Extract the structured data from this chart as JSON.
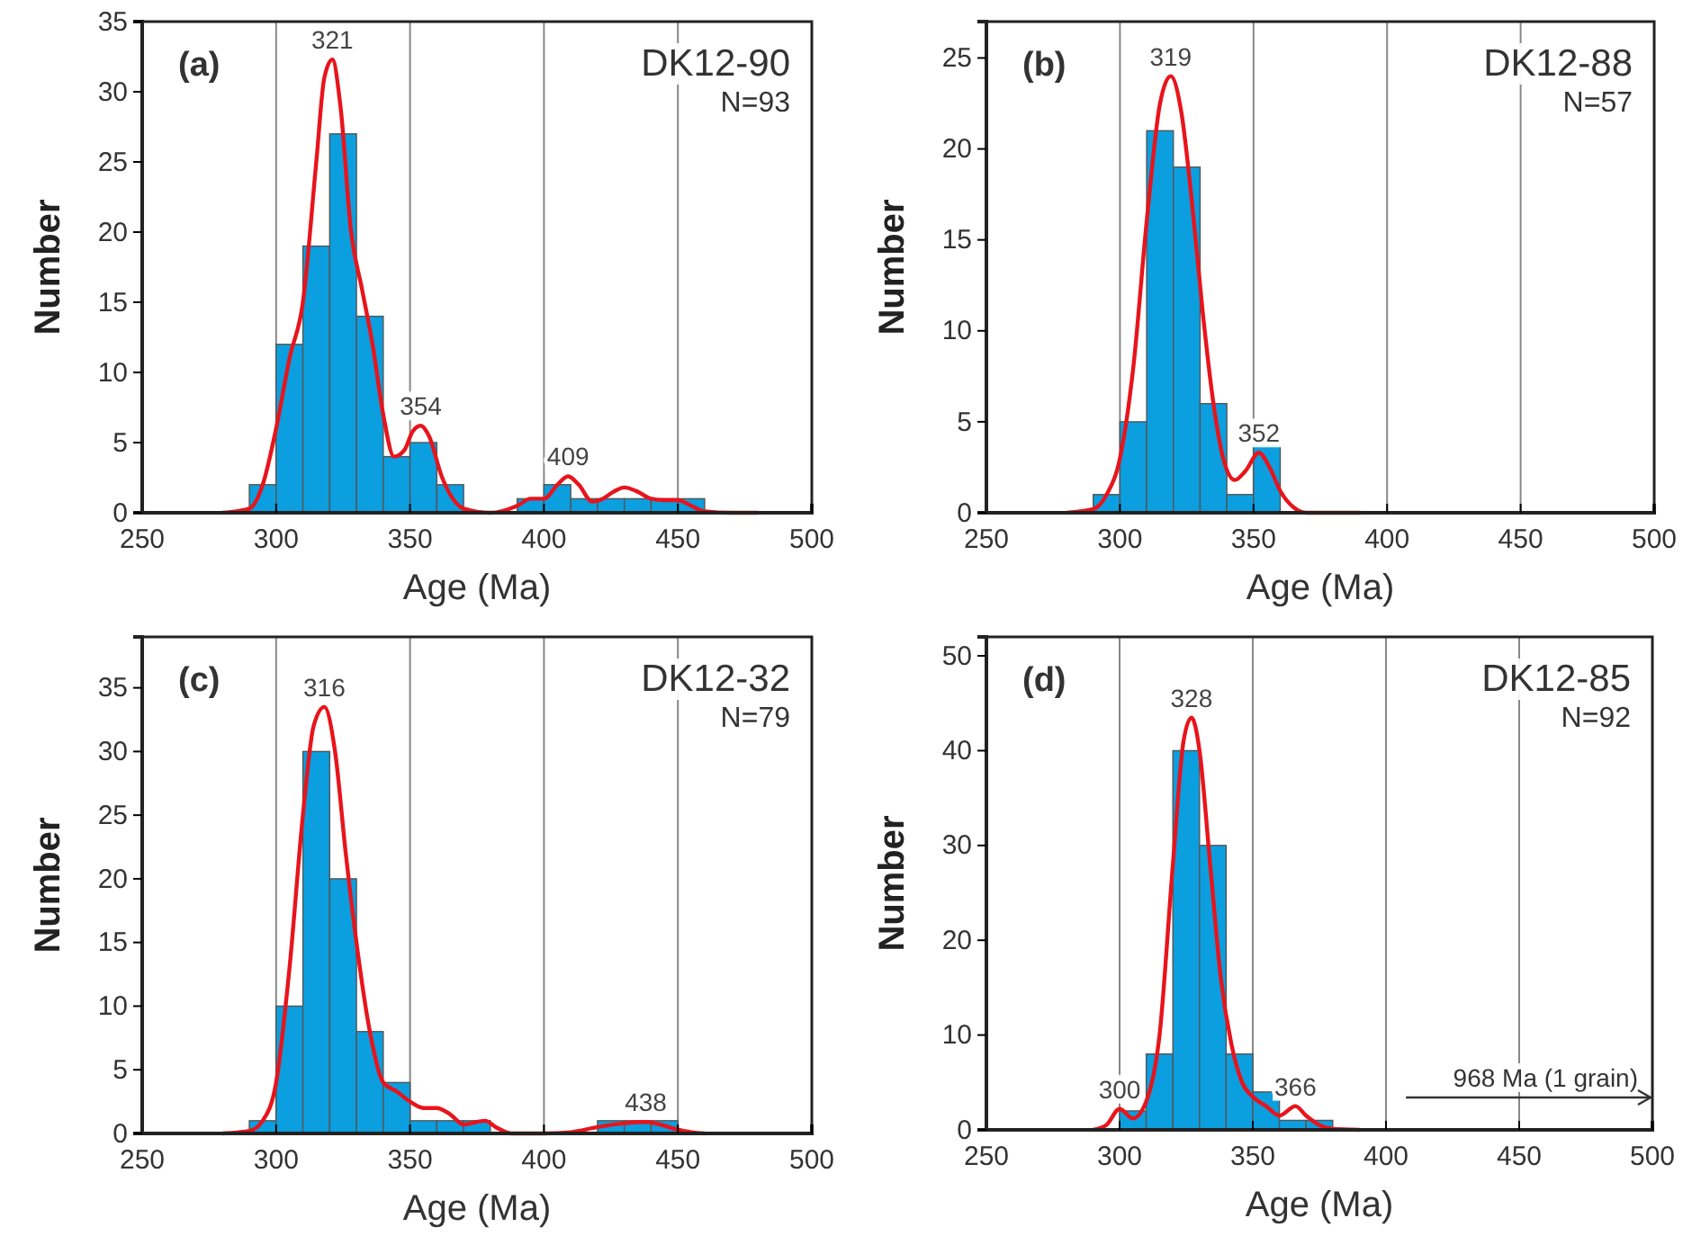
{
  "chart_data": [
    {
      "type": "histogram",
      "title": "DK12-90",
      "subtitle": "N=93",
      "xlabel": "Age (Ma)",
      "ylabel": "Number",
      "xlim": [
        250,
        500
      ],
      "xticks": [
        250,
        300,
        350,
        400,
        450,
        500
      ],
      "ylim": [
        0,
        35
      ],
      "yticks": [
        0,
        5,
        10,
        15,
        20,
        25,
        30,
        35
      ],
      "grid": "x",
      "bins": [
        290,
        300,
        310,
        320,
        330,
        340,
        350,
        360,
        370,
        380,
        390,
        400,
        410,
        420,
        430,
        440,
        450,
        460
      ],
      "series": [
        {
          "color": "#0b9fe0",
          "values": [
            2,
            12,
            19,
            27,
            14,
            4,
            5,
            2,
            0,
            0,
            1,
            2,
            1,
            1,
            1,
            1,
            1
          ]
        },
        {
          "type": "line",
          "color": "#e8141c",
          "x": [
            280,
            290,
            295,
            300,
            305,
            310,
            315,
            318,
            321,
            324,
            328,
            332,
            336,
            340,
            344,
            348,
            351,
            354,
            357,
            362,
            366,
            370,
            380,
            390,
            395,
            400,
            405,
            409,
            413,
            418,
            422,
            426,
            430,
            435,
            440,
            445,
            450,
            455,
            460,
            470,
            480
          ],
          "values": [
            0,
            0.3,
            2,
            6,
            11,
            15,
            25,
            31,
            32.3,
            29,
            20,
            16,
            12,
            7,
            4,
            4.5,
            5.8,
            6.2,
            5.5,
            2.5,
            1,
            0.3,
            0,
            0.5,
            1,
            1,
            2,
            2.6,
            2,
            0.8,
            1,
            1.5,
            1.8,
            1.5,
            1,
            0.9,
            0.9,
            0.5,
            0.1,
            0,
            0
          ]
        }
      ],
      "annotations": [
        "(a)",
        {
          "text": "321",
          "x": 321,
          "y": 32.3
        },
        {
          "text": "354",
          "x": 354,
          "y": 6.2
        },
        {
          "text": "409",
          "x": 409,
          "y": 2.6
        }
      ]
    },
    {
      "type": "histogram",
      "title": "DK12-88",
      "subtitle": "N=57",
      "xlabel": "Age (Ma)",
      "ylabel": "Number",
      "xlim": [
        250,
        500
      ],
      "xticks": [
        250,
        300,
        350,
        400,
        450,
        500
      ],
      "ylim": [
        0,
        27
      ],
      "yticks": [
        0,
        5,
        10,
        15,
        20,
        25
      ],
      "grid": "x",
      "bins": [
        290,
        300,
        310,
        320,
        330,
        340,
        350,
        360
      ],
      "series": [
        {
          "color": "#0b9fe0",
          "values": [
            1,
            5,
            21,
            19,
            6,
            1,
            4
          ]
        },
        {
          "type": "line",
          "color": "#e8141c",
          "x": [
            280,
            290,
            295,
            300,
            305,
            310,
            315,
            319,
            323,
            327,
            331,
            335,
            339,
            343,
            347,
            352,
            356,
            360,
            365,
            370,
            390
          ],
          "values": [
            0,
            0.2,
            1,
            3,
            8,
            16,
            22.5,
            24,
            22,
            17,
            11,
            6,
            2.8,
            1.8,
            2.3,
            3.3,
            2.5,
            1.2,
            0.3,
            0,
            0
          ]
        }
      ],
      "annotations": [
        "(b)",
        {
          "text": "319",
          "x": 319,
          "y": 24
        },
        {
          "text": "352",
          "x": 352,
          "y": 3.3
        }
      ]
    },
    {
      "type": "histogram",
      "title": "DK12-32",
      "subtitle": "N=79",
      "xlabel": "Age (Ma)",
      "ylabel": "Number",
      "xlim": [
        250,
        500
      ],
      "xticks": [
        250,
        300,
        350,
        400,
        450,
        500
      ],
      "ylim": [
        0,
        39
      ],
      "yticks": [
        0,
        5,
        10,
        15,
        20,
        25,
        30,
        35
      ],
      "grid": "x",
      "bins": [
        290,
        300,
        310,
        320,
        330,
        340,
        350,
        360,
        370,
        380,
        390,
        400,
        410,
        420,
        430,
        440,
        450
      ],
      "series": [
        {
          "color": "#0b9fe0",
          "values": [
            1,
            10,
            30,
            20,
            8,
            4,
            1,
            1,
            1,
            0,
            0,
            0,
            0,
            1,
            1,
            1
          ]
        },
        {
          "type": "line",
          "color": "#e8141c",
          "x": [
            280,
            290,
            295,
            300,
            305,
            310,
            314,
            318,
            322,
            326,
            330,
            335,
            340,
            345,
            350,
            355,
            360,
            365,
            370,
            375,
            378,
            382,
            388,
            400,
            410,
            420,
            430,
            438,
            445,
            450,
            455,
            460
          ],
          "values": [
            0,
            0.2,
            1,
            4,
            13,
            25,
            32,
            33.5,
            30,
            22,
            15,
            8,
            4,
            3.3,
            2.5,
            2,
            2,
            1.5,
            0.7,
            0.9,
            1,
            0.5,
            0,
            0,
            0.1,
            0.5,
            0.8,
            0.9,
            0.6,
            0.3,
            0.1,
            0
          ]
        }
      ],
      "annotations": [
        "(c)",
        {
          "text": "316",
          "x": 318,
          "y": 33.5
        },
        {
          "text": "438",
          "x": 438,
          "y": 0.9
        }
      ]
    },
    {
      "type": "histogram",
      "title": "DK12-85",
      "subtitle": "N=92",
      "xlabel": "Age (Ma)",
      "ylabel": "Number",
      "xlim": [
        250,
        500
      ],
      "xticks": [
        250,
        300,
        350,
        400,
        450,
        500
      ],
      "ylim": [
        0,
        52
      ],
      "yticks": [
        0,
        10,
        20,
        30,
        40,
        50
      ],
      "grid": "x",
      "bins": [
        300,
        310,
        320,
        330,
        340,
        350,
        360,
        370,
        380
      ],
      "series": [
        {
          "color": "#0b9fe0",
          "values": [
            2,
            8,
            40,
            30,
            8,
            4,
            1,
            1
          ]
        },
        {
          "type": "line",
          "color": "#e8141c",
          "x": [
            290,
            295,
            300,
            305,
            310,
            315,
            320,
            324,
            327,
            330,
            334,
            338,
            342,
            346,
            350,
            355,
            360,
            366,
            370,
            375,
            380,
            390
          ],
          "values": [
            0,
            0.5,
            2.2,
            1.2,
            3,
            10,
            28,
            41,
            43.5,
            40,
            28,
            16,
            9,
            5,
            3.5,
            2.5,
            1.5,
            2.5,
            1.5,
            0.5,
            0.1,
            0
          ]
        }
      ],
      "annotations": [
        "(d)",
        "968 Ma (1 grain)",
        {
          "text": "328",
          "x": 327,
          "y": 43.5
        },
        {
          "text": "300",
          "x": 300,
          "y": 2.2
        },
        {
          "text": "366",
          "x": 366,
          "y": 2.5
        }
      ]
    }
  ]
}
